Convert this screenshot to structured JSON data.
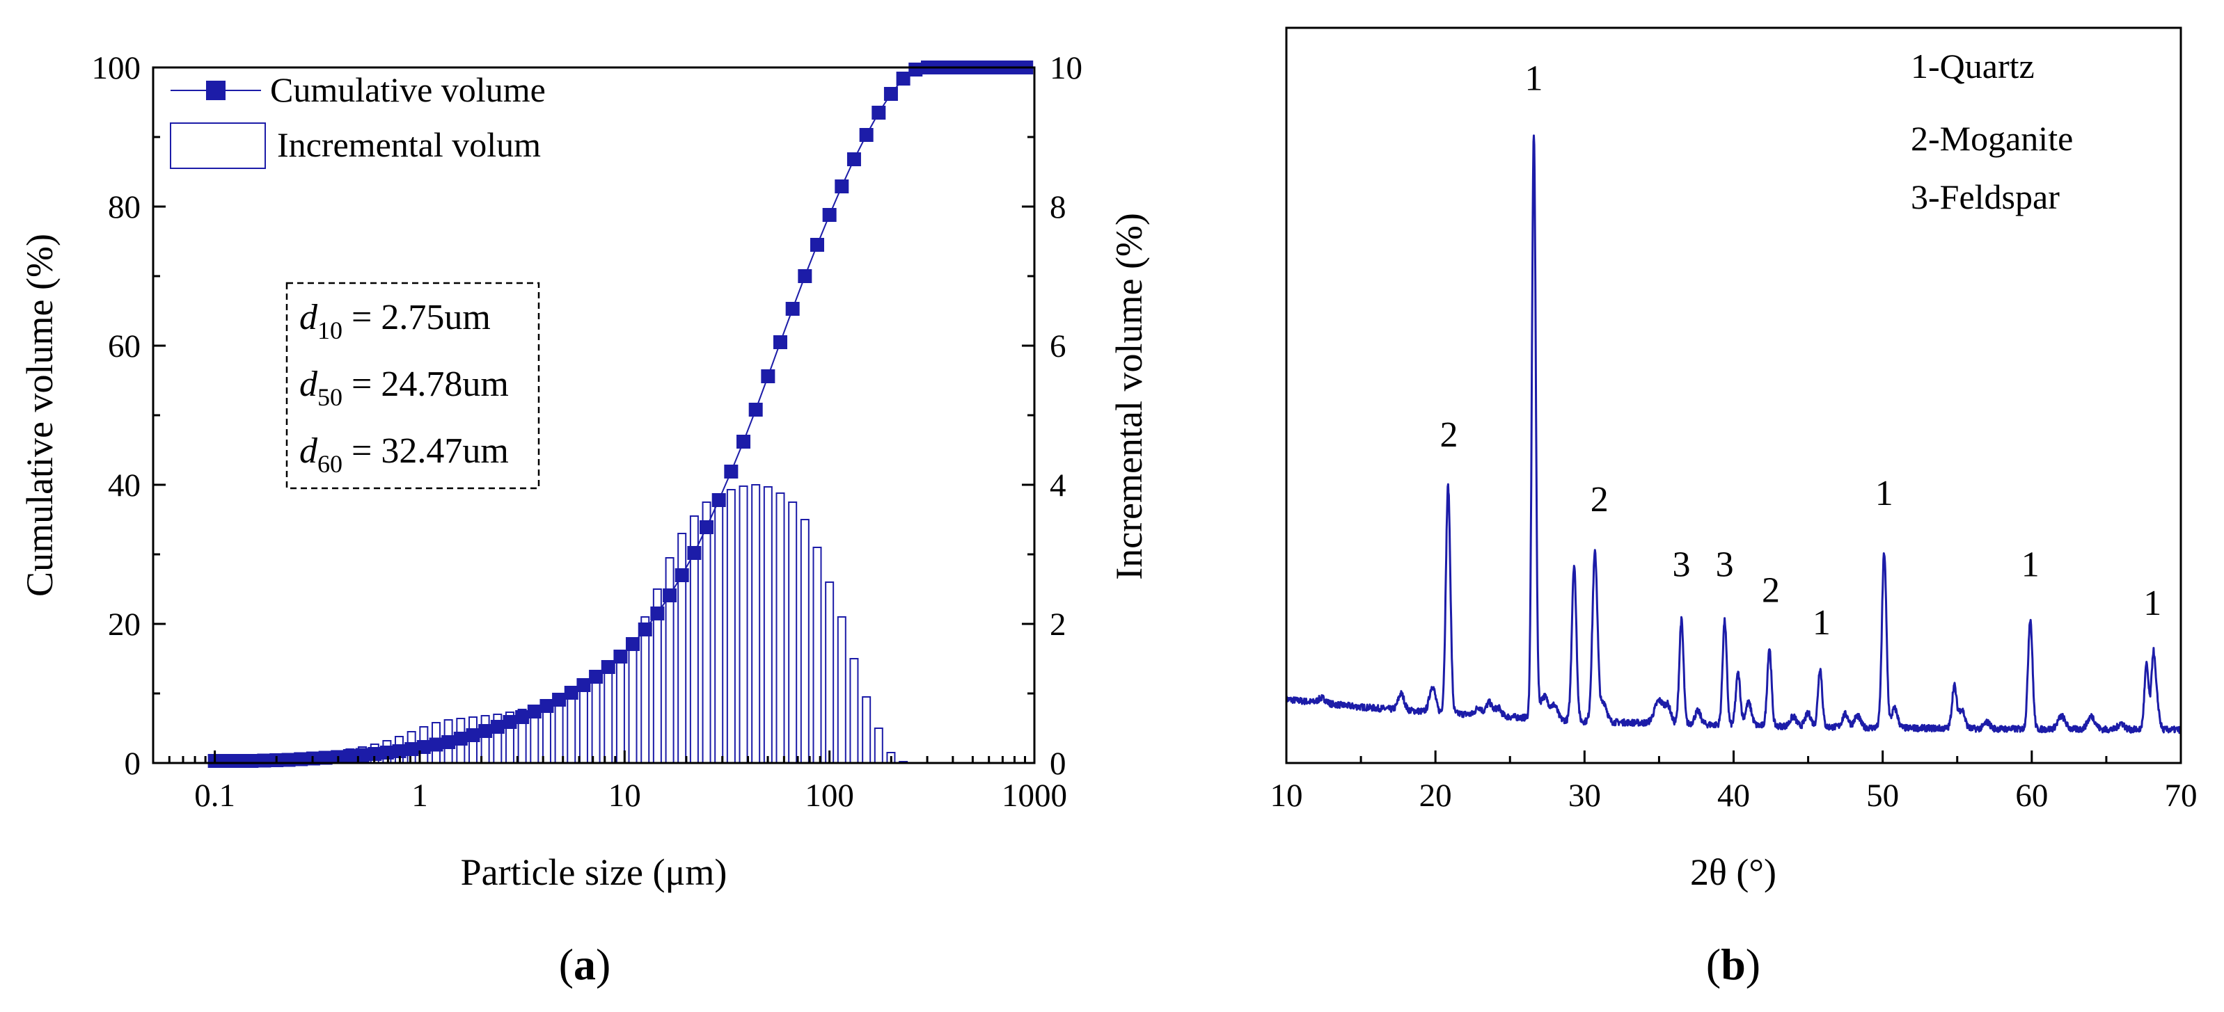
{
  "chart_data": [
    {
      "panel": "(a)",
      "panel_label": {
        "open": "(",
        "letter": "a",
        "close": ")"
      },
      "type": "bar+line",
      "xlabel": "Particle size (μm)",
      "ylabel_left": "Cumulative volume (%)",
      "ylabel_right": "Incremental volume (%)",
      "xscale": "log",
      "xlim": [
        0.05,
        1000
      ],
      "ylim_left": [
        0,
        100
      ],
      "ylim_right": [
        0,
        10
      ],
      "x_ticks": [
        0.1,
        1,
        10,
        100,
        1000
      ],
      "x_tick_labels": [
        "0.1",
        "1",
        "10",
        "100",
        "1000"
      ],
      "y_left_ticks": [
        0,
        20,
        40,
        60,
        80,
        100
      ],
      "y_left_tick_labels": [
        "0",
        "20",
        "40",
        "60",
        "80",
        "100"
      ],
      "y_right_ticks": [
        0,
        2,
        4,
        6,
        8,
        10
      ],
      "y_right_tick_labels": [
        "0",
        "2",
        "4",
        "6",
        "8",
        "10"
      ],
      "legend": [
        "Cumulative volume",
        "Incremental volum"
      ],
      "legend_placement": "top-left",
      "annotation_box": [
        {
          "sym": "d",
          "sub": "10",
          "value": " = 2.75um"
        },
        {
          "sym": "d",
          "sub": "50",
          "value": " = 24.78um"
        },
        {
          "sym": "d",
          "sub": "60",
          "value": " = 32.47um"
        }
      ],
      "series": [
        {
          "name": "Cumulative volume",
          "axis": "left",
          "points": [
            [
              0.1,
              0.3
            ],
            [
              0.115,
              0.3
            ],
            [
              0.132,
              0.3
            ],
            [
              0.151,
              0.3
            ],
            [
              0.174,
              0.35
            ],
            [
              0.2,
              0.4
            ],
            [
              0.229,
              0.45
            ],
            [
              0.263,
              0.55
            ],
            [
              0.302,
              0.65
            ],
            [
              0.347,
              0.75
            ],
            [
              0.398,
              0.85
            ],
            [
              0.457,
              1.0
            ],
            [
              0.525,
              1.15
            ],
            [
              0.603,
              1.3
            ],
            [
              0.692,
              1.5
            ],
            [
              0.794,
              1.7
            ],
            [
              0.912,
              2.0
            ],
            [
              1.047,
              2.3
            ],
            [
              1.202,
              2.65
            ],
            [
              1.38,
              3.0
            ],
            [
              1.585,
              3.5
            ],
            [
              1.82,
              4.0
            ],
            [
              2.089,
              4.6
            ],
            [
              2.399,
              5.2
            ],
            [
              2.754,
              5.9
            ],
            [
              3.162,
              6.6
            ],
            [
              3.631,
              7.4
            ],
            [
              4.169,
              8.2
            ],
            [
              4.786,
              9.1
            ],
            [
              5.495,
              10.1
            ],
            [
              6.31,
              11.2
            ],
            [
              7.244,
              12.4
            ],
            [
              8.318,
              13.8
            ],
            [
              9.55,
              15.3
            ],
            [
              10.96,
              17.1
            ],
            [
              12.59,
              19.2
            ],
            [
              14.45,
              21.5
            ],
            [
              16.6,
              24.1
            ],
            [
              19.05,
              27.0
            ],
            [
              21.88,
              30.2
            ],
            [
              25.12,
              33.9
            ],
            [
              28.84,
              37.8
            ],
            [
              33.11,
              41.9
            ],
            [
              38.02,
              46.2
            ],
            [
              43.65,
              50.8
            ],
            [
              50.12,
              55.6
            ],
            [
              57.54,
              60.5
            ],
            [
              66.07,
              65.3
            ],
            [
              75.86,
              70.0
            ],
            [
              87.1,
              74.5
            ],
            [
              100,
              78.8
            ],
            [
              114.8,
              82.9
            ],
            [
              131.8,
              86.8
            ],
            [
              151.4,
              90.3
            ],
            [
              173.8,
              93.5
            ],
            [
              199.5,
              96.2
            ],
            [
              229.1,
              98.4
            ],
            [
              263,
              99.7
            ],
            [
              302,
              100
            ],
            [
              346.7,
              100
            ],
            [
              398.1,
              100
            ],
            [
              457.1,
              100
            ],
            [
              524.8,
              100
            ],
            [
              602.6,
              100
            ],
            [
              691.8,
              100
            ],
            [
              794.3,
              100
            ],
            [
              912,
              100
            ]
          ]
        },
        {
          "name": "Incremental volum",
          "axis": "right",
          "points": [
            [
              0.1,
              0.0
            ],
            [
              0.115,
              0.01
            ],
            [
              0.132,
              0.01
            ],
            [
              0.151,
              0.02
            ],
            [
              0.174,
              0.03
            ],
            [
              0.2,
              0.05
            ],
            [
              0.229,
              0.07
            ],
            [
              0.263,
              0.09
            ],
            [
              0.302,
              0.11
            ],
            [
              0.347,
              0.14
            ],
            [
              0.398,
              0.17
            ],
            [
              0.457,
              0.2
            ],
            [
              0.525,
              0.23
            ],
            [
              0.603,
              0.27
            ],
            [
              0.692,
              0.32
            ],
            [
              0.794,
              0.38
            ],
            [
              0.912,
              0.45
            ],
            [
              1.047,
              0.52
            ],
            [
              1.202,
              0.58
            ],
            [
              1.38,
              0.62
            ],
            [
              1.585,
              0.64
            ],
            [
              1.82,
              0.66
            ],
            [
              2.089,
              0.68
            ],
            [
              2.399,
              0.7
            ],
            [
              2.754,
              0.73
            ],
            [
              3.162,
              0.77
            ],
            [
              3.631,
              0.82
            ],
            [
              4.169,
              0.88
            ],
            [
              4.786,
              0.95
            ],
            [
              5.495,
              1.03
            ],
            [
              6.31,
              1.12
            ],
            [
              7.244,
              1.23
            ],
            [
              8.318,
              1.37
            ],
            [
              9.55,
              1.55
            ],
            [
              10.96,
              1.8
            ],
            [
              12.59,
              2.1
            ],
            [
              14.45,
              2.5
            ],
            [
              16.6,
              2.95
            ],
            [
              19.05,
              3.3
            ],
            [
              21.88,
              3.55
            ],
            [
              25.12,
              3.75
            ],
            [
              28.84,
              3.85
            ],
            [
              33.11,
              3.93
            ],
            [
              38.02,
              3.98
            ],
            [
              43.65,
              4.0
            ],
            [
              50.12,
              3.97
            ],
            [
              57.54,
              3.88
            ],
            [
              66.07,
              3.75
            ],
            [
              75.86,
              3.5
            ],
            [
              87.1,
              3.1
            ],
            [
              100,
              2.6
            ],
            [
              114.8,
              2.1
            ],
            [
              131.8,
              1.5
            ],
            [
              151.4,
              0.95
            ],
            [
              173.8,
              0.5
            ],
            [
              199.5,
              0.15
            ],
            [
              229.1,
              0.02
            ]
          ]
        }
      ]
    },
    {
      "panel": "(b)",
      "panel_label": {
        "open": "(",
        "letter": "b",
        "close": ")"
      },
      "type": "line",
      "xlabel": "2θ (°)",
      "ylabel": "",
      "xlim": [
        10,
        70
      ],
      "x_ticks": [
        10,
        20,
        30,
        40,
        50,
        60,
        70
      ],
      "x_tick_labels": [
        "10",
        "20",
        "30",
        "40",
        "50",
        "60",
        "70"
      ],
      "y_ticks": [],
      "legend_text": [
        "1-Quartz",
        "2-Moganite",
        "3-Feldspar"
      ],
      "legend_placement": "top-right",
      "baseline": [
        [
          10,
          5.0
        ],
        [
          12,
          4.5
        ],
        [
          15,
          3.8
        ],
        [
          20,
          3.0
        ],
        [
          25,
          2.3
        ],
        [
          30,
          1.6
        ],
        [
          40,
          1.0
        ],
        [
          50,
          0.6
        ],
        [
          60,
          0.4
        ],
        [
          70,
          0.3
        ]
      ],
      "peaks": [
        [
          12.4,
          0.8,
          0.25
        ],
        [
          17.7,
          2.5,
          0.2
        ],
        [
          19.8,
          4.0,
          0.2
        ],
        [
          20.85,
          35.0,
          0.15
        ],
        [
          22.9,
          1.2,
          0.2
        ],
        [
          23.6,
          2.0,
          0.2
        ],
        [
          24.2,
          1.3,
          0.2
        ],
        [
          26.6,
          90.0,
          0.13
        ],
        [
          27.3,
          3.5,
          0.3
        ],
        [
          28.0,
          2.0,
          0.2
        ],
        [
          29.3,
          24.0,
          0.15
        ],
        [
          30.7,
          26.0,
          0.17
        ],
        [
          31.3,
          3.0,
          0.2
        ],
        [
          35.0,
          3.5,
          0.3
        ],
        [
          35.6,
          2.5,
          0.2
        ],
        [
          36.5,
          16.0,
          0.14
        ],
        [
          37.6,
          2.0,
          0.2
        ],
        [
          39.4,
          16.0,
          0.14
        ],
        [
          40.3,
          8.0,
          0.15
        ],
        [
          41.0,
          3.5,
          0.2
        ],
        [
          42.4,
          12.0,
          0.14
        ],
        [
          44.0,
          1.5,
          0.2
        ],
        [
          45.0,
          2.0,
          0.2
        ],
        [
          45.8,
          9.0,
          0.14
        ],
        [
          47.5,
          2.0,
          0.2
        ],
        [
          48.3,
          1.8,
          0.2
        ],
        [
          50.1,
          27.0,
          0.15
        ],
        [
          50.8,
          3.0,
          0.2
        ],
        [
          54.8,
          6.5,
          0.15
        ],
        [
          55.3,
          3.0,
          0.2
        ],
        [
          57.0,
          1.0,
          0.2
        ],
        [
          59.9,
          17.0,
          0.15
        ],
        [
          62.0,
          2.0,
          0.25
        ],
        [
          64.0,
          2.0,
          0.25
        ],
        [
          66.0,
          1.0,
          0.2
        ],
        [
          67.7,
          10.0,
          0.14
        ],
        [
          68.15,
          11.0,
          0.13
        ],
        [
          68.4,
          4.0,
          0.15
        ]
      ],
      "peak_labels": [
        {
          "label": "1",
          "x": 26.6,
          "y": 99
        },
        {
          "label": "2",
          "x": 20.9,
          "y": 44
        },
        {
          "label": "2",
          "x": 31.0,
          "y": 34
        },
        {
          "label": "3",
          "x": 36.5,
          "y": 24
        },
        {
          "label": "3",
          "x": 39.4,
          "y": 24
        },
        {
          "label": "2",
          "x": 42.5,
          "y": 20
        },
        {
          "label": "1",
          "x": 45.9,
          "y": 15
        },
        {
          "label": "1",
          "x": 50.1,
          "y": 35
        },
        {
          "label": "1",
          "x": 59.9,
          "y": 24
        },
        {
          "label": "1",
          "x": 68.1,
          "y": 18
        }
      ]
    }
  ]
}
